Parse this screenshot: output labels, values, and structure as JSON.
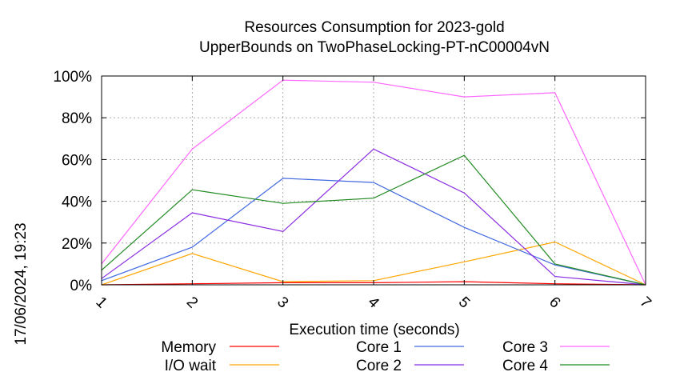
{
  "chart_data": {
    "type": "line",
    "title_line1": "Resources Consumption for 2023-gold",
    "title_line2": "UpperBounds on TwoPhaseLocking-PT-nC00004vN",
    "xlabel": "Execution time (seconds)",
    "ylabel": "",
    "side_label": "17/06/2024, 19:23",
    "x": [
      1,
      2,
      3,
      4,
      5,
      6,
      7
    ],
    "xlim": [
      1,
      7
    ],
    "ylim": [
      0,
      100
    ],
    "x_ticks": [
      "1",
      "2",
      "3",
      "4",
      "5",
      "6",
      "7"
    ],
    "y_ticks": [
      "0%",
      "20%",
      "40%",
      "60%",
      "80%",
      "100%"
    ],
    "grid": true,
    "legend_position": "bottom",
    "series": [
      {
        "name": "Memory",
        "color": "#ff0000",
        "values": [
          0,
          0.5,
          1,
          1,
          1.5,
          0.5,
          0
        ]
      },
      {
        "name": "I/O wait",
        "color": "#ffa500",
        "values": [
          0,
          15,
          1.5,
          2,
          11,
          20.5,
          0
        ]
      },
      {
        "name": "Core 1",
        "color": "#4169e1",
        "values": [
          2,
          18,
          51,
          49,
          27.5,
          9.5,
          0
        ]
      },
      {
        "name": "Core 2",
        "color": "#8a2be2",
        "values": [
          3,
          34.5,
          25.5,
          65,
          44,
          4,
          0
        ]
      },
      {
        "name": "Core 3",
        "color": "#ff66ff",
        "values": [
          10,
          65,
          98,
          97,
          90,
          92,
          0
        ]
      },
      {
        "name": "Core 4",
        "color": "#228b22",
        "values": [
          7,
          45.5,
          39,
          41.5,
          62,
          10,
          0
        ]
      }
    ]
  }
}
